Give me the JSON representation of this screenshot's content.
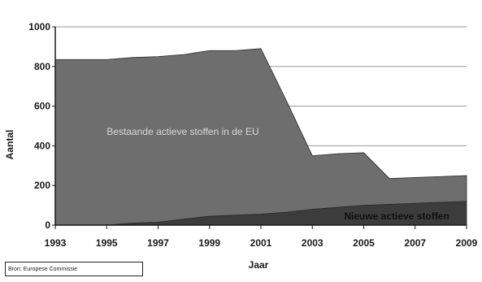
{
  "chart_data": {
    "type": "area",
    "stacked": true,
    "x": [
      1993,
      1994,
      1995,
      1996,
      1997,
      1998,
      1999,
      2000,
      2001,
      2002,
      2003,
      2004,
      2005,
      2006,
      2007,
      2008,
      2009
    ],
    "series": [
      {
        "name": "Nieuwe actieve stoffen",
        "color": "#3c3c3c",
        "values": [
          0,
          0,
          0,
          10,
          15,
          30,
          45,
          50,
          55,
          65,
          80,
          90,
          100,
          105,
          110,
          115,
          120
        ]
      },
      {
        "name": "Bestaande actieve stoffen in de EU",
        "color": "#6e6e6e",
        "values": [
          835,
          835,
          835,
          835,
          835,
          830,
          835,
          830,
          835,
          560,
          270,
          270,
          265,
          130,
          130,
          130,
          130
        ]
      }
    ],
    "xlabel": "Jaar",
    "ylabel": "Aantal",
    "ylim": [
      0,
      1000
    ],
    "yticks": [
      0,
      200,
      400,
      600,
      800,
      1000
    ],
    "xticks": [
      1993,
      1995,
      1997,
      1999,
      2001,
      2003,
      2005,
      2007,
      2009
    ],
    "grid": true,
    "annotations": {
      "existing": "Bestaande actieve stoffen in de EU",
      "new": "Nieuwe actieve stoffen"
    }
  },
  "source": "Bron: Europese Commissie"
}
